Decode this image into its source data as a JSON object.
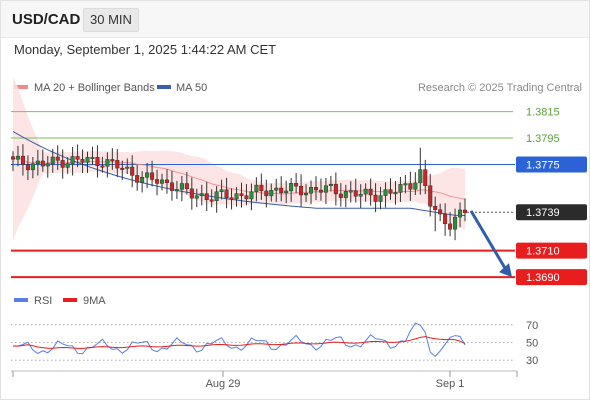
{
  "header": {
    "symbol": "USD/CAD",
    "timeframe": "30 MIN"
  },
  "datetime": "Monday, September 1, 2025 1:44:22 AM CET",
  "attribution": "Research © 2025 Trading Central",
  "legend": {
    "bollinger_label": "MA 20 + Bollinger Bands",
    "ma50_label": "MA 50",
    "rsi_label": "RSI",
    "rsi_ma_label": "9MA"
  },
  "colors": {
    "bollinger": "#f08a8a",
    "bollinger_fill": "#fde0e0",
    "ma50": "#3a5ea8",
    "resistance": "#7cc15a",
    "pivot": "#2b63d6",
    "support": "#e81e1e",
    "up_candle": "#2e8b3e",
    "down_candle": "#c62828",
    "rsi": "#5b7fe0",
    "rsi_ma": "#e81e1e",
    "arrow": "#2f5fa8"
  },
  "chart_data": [
    {
      "type": "candlestick",
      "x_ticks": [
        "Aug 29",
        "Sep 1"
      ],
      "ylim": [
        1.3678,
        1.3826
      ],
      "current_price": 1.3739,
      "levels": [
        {
          "value": 1.3815,
          "label": "1.3815",
          "kind": "resistance"
        },
        {
          "value": 1.3795,
          "label": "1.3795",
          "kind": "resistance"
        },
        {
          "value": 1.3775,
          "label": "1.3775",
          "kind": "pivot"
        },
        {
          "value": 1.371,
          "label": "1.3710",
          "kind": "support"
        },
        {
          "value": 1.369,
          "label": "1.3690",
          "kind": "support"
        }
      ],
      "forecast_arrow": {
        "from": 1.374,
        "to": 1.369
      }
    },
    {
      "type": "line",
      "series": [
        {
          "name": "RSI"
        },
        {
          "name": "9MA"
        }
      ],
      "y_ticks": [
        "70",
        "50",
        "30"
      ],
      "ylim": [
        20,
        80
      ]
    }
  ]
}
